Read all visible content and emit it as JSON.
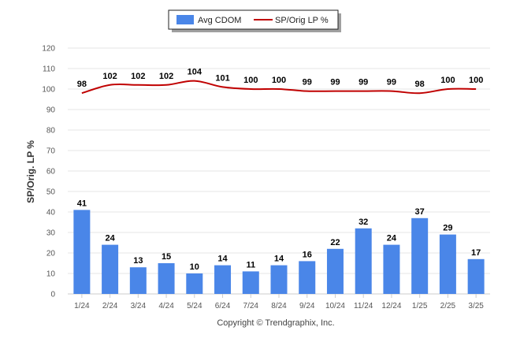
{
  "chart_data": {
    "type": "bar",
    "categories": [
      "1/24",
      "2/24",
      "3/24",
      "4/24",
      "5/24",
      "6/24",
      "7/24",
      "8/24",
      "9/24",
      "10/24",
      "11/24",
      "12/24",
      "1/25",
      "2/25",
      "3/25"
    ],
    "series": [
      {
        "name": "Avg CDOM",
        "type": "bar",
        "color": "#4a86e8",
        "values": [
          41,
          24,
          13,
          15,
          10,
          14,
          11,
          14,
          16,
          22,
          32,
          24,
          37,
          29,
          17
        ]
      },
      {
        "name": "SP/Orig LP %",
        "type": "line",
        "color": "#c00000",
        "values": [
          98,
          102,
          102,
          102,
          104,
          101,
          100,
          100,
          99,
          99,
          99,
          99,
          98,
          100,
          100
        ]
      }
    ],
    "ylabel": "SP/Orig. LP %",
    "ylim": [
      0,
      120
    ],
    "yticks": [
      0,
      10,
      20,
      30,
      40,
      50,
      60,
      70,
      80,
      90,
      100,
      110,
      120
    ],
    "grid": true,
    "legend_position": "top-center"
  },
  "credit": "Copyright © Trendgraphix, Inc."
}
